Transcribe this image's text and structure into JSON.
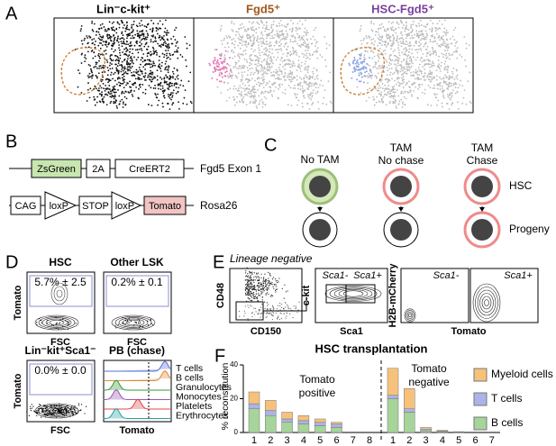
{
  "A": {
    "label": "A",
    "titles": [
      "Lin⁻c-kit⁺",
      "Fgd5⁺",
      "HSC-Fgd5⁺"
    ],
    "title_colors": [
      "#000000",
      "#a0581c",
      "#7b3f9e"
    ]
  },
  "B": {
    "label": "B",
    "construct1": {
      "boxes": [
        "ZsGreen",
        "2A",
        "CreERT2"
      ],
      "name": "Fgd5 Exon 1"
    },
    "construct2": {
      "boxes": [
        "CAG",
        "loxP",
        "STOP",
        "loxP",
        "Tomato"
      ],
      "name": "Rosa26"
    }
  },
  "C": {
    "label": "C",
    "columns": [
      [
        "No TAM"
      ],
      [
        "TAM",
        "No chase"
      ],
      [
        "TAM",
        "Chase"
      ]
    ],
    "rows": [
      "HSC",
      "Progeny"
    ]
  },
  "D": {
    "label": "D",
    "ylabels": [
      "Tomato",
      "Tomato"
    ],
    "plots": [
      {
        "title": "HSC",
        "gate": "5.7% ± 2.5",
        "xlabel": "FSC"
      },
      {
        "title": "Other LSK",
        "gate": "0.2% ± 0.1",
        "xlabel": "FSC"
      },
      {
        "title": "Lin⁻kit⁺Sca1⁻",
        "gate": "0.0% ± 0.0",
        "xlabel": "FSC"
      }
    ],
    "hist": {
      "title": "PB (chase)",
      "xlabel": "Tomato",
      "populations": [
        {
          "name": "T cells",
          "color": "#5b6fd6"
        },
        {
          "name": "B cells",
          "color": "#e08a3a"
        },
        {
          "name": "Granulocytes",
          "color": "#3a9a3a"
        },
        {
          "name": "Monocytes",
          "color": "#9a5ab0"
        },
        {
          "name": "Platelets",
          "color": "#e04848"
        },
        {
          "name": "Erythrocytes",
          "color": "#2aa0a0"
        }
      ]
    }
  },
  "E": {
    "label": "E",
    "caption": "Lineage negative",
    "plots": [
      {
        "ylabel": "CD48",
        "xlabel": "CD150"
      },
      {
        "ylabel": "c-kit",
        "xlabel": "Sca1",
        "gates": [
          "Sca1-",
          "Sca1+"
        ]
      }
    ],
    "mcherry": {
      "ylabel": "H2B-mCherry",
      "xlabel": "Tomato",
      "titles": [
        "Sca1-",
        "Sca1+"
      ]
    }
  },
  "F": {
    "label": "F",
    "title": "HSC transplantation",
    "ylabel": "% reconstitution",
    "ylim": [
      0,
      40
    ],
    "yticks": [
      0,
      20,
      40
    ],
    "series": [
      {
        "name": "B cells",
        "color": "#a6d49a"
      },
      {
        "name": "T cells",
        "color": "#aab4e8"
      },
      {
        "name": "Myeloid cells",
        "color": "#f6c27b"
      }
    ],
    "groups": [
      {
        "label": [
          "Tomato",
          "positive"
        ],
        "categories": [
          "1",
          "2",
          "3",
          "4",
          "5",
          "6",
          "7",
          "8"
        ],
        "values": [
          [
            14,
            10,
            6,
            5,
            4,
            3,
            0,
            0
          ],
          [
            3,
            3,
            2,
            2,
            2,
            2,
            0,
            0
          ],
          [
            7,
            6,
            4,
            3,
            2,
            1,
            0,
            0
          ]
        ]
      },
      {
        "label": [
          "Tomato",
          "negative"
        ],
        "categories": [
          "1",
          "2",
          "3",
          "4",
          "5",
          "6",
          "7"
        ],
        "values": [
          [
            20,
            12,
            1,
            0.5,
            0.3,
            0,
            0
          ],
          [
            2,
            2,
            1,
            0.3,
            0.2,
            0,
            0
          ],
          [
            16,
            12,
            1,
            0.5,
            0,
            0,
            0
          ]
        ]
      }
    ]
  }
}
